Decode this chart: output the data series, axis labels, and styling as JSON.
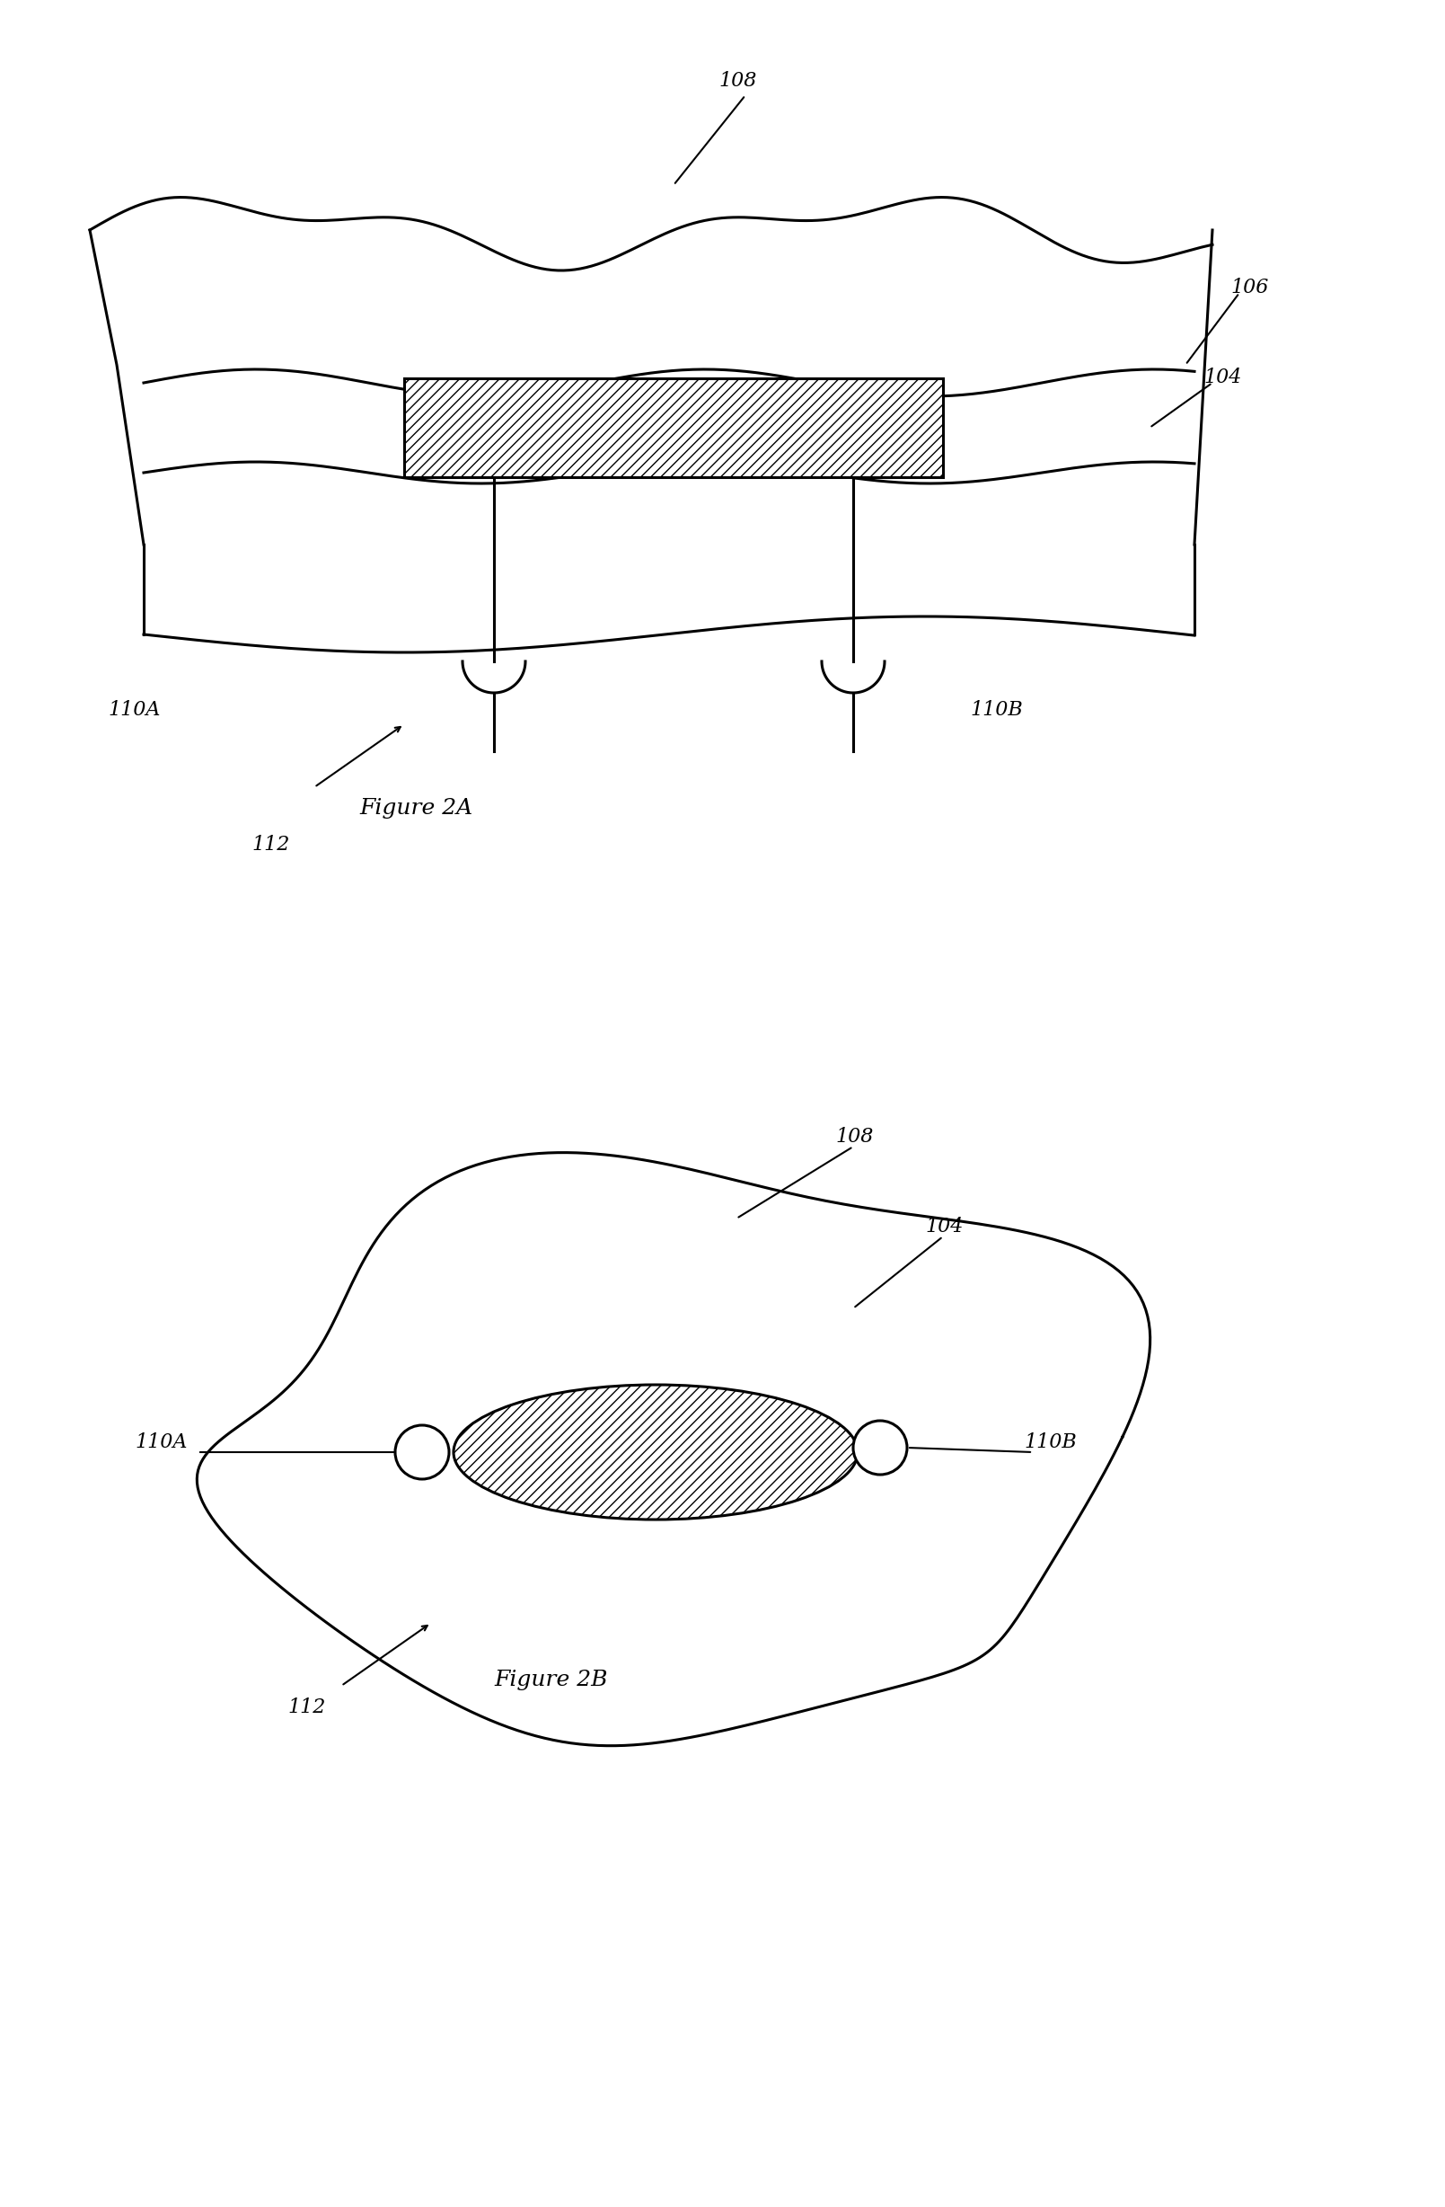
{
  "bg_color": "#ffffff",
  "line_color": "#000000",
  "hatch_color": "#000000",
  "fig_width": 16.09,
  "fig_height": 24.56,
  "labels": {
    "108_top": "108",
    "106_top": "106",
    "104_top": "104",
    "110A_top": "110A",
    "110B_top": "110B",
    "figA": "Figure 2A",
    "112_top": "112",
    "108_bot": "108",
    "104_bot": "104",
    "110A_bot": "110A",
    "110B_bot": "110B",
    "figB": "Figure 2B",
    "112_bot": "112"
  }
}
